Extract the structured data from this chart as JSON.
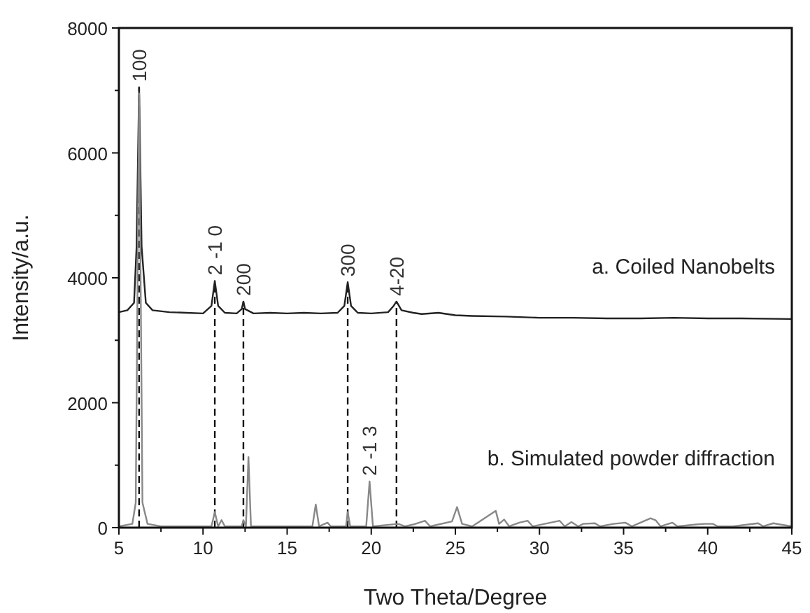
{
  "chart_data": {
    "type": "line",
    "xlabel": "Two Theta/Degree",
    "ylabel": "Intensity/a.u.",
    "xlim": [
      5,
      45
    ],
    "ylim": [
      0,
      8000
    ],
    "xticks": [
      5,
      {
        "value": 7.5,
        "label": null
      },
      10,
      {
        "value": 12.5,
        "label": null
      },
      15,
      {
        "value": 17.5,
        "label": null
      },
      20,
      {
        "value": 22.5,
        "label": null
      },
      25,
      {
        "value": 27.5,
        "label": null
      },
      30,
      {
        "value": 32.5,
        "label": null
      },
      35,
      {
        "value": 37.5,
        "label": null
      },
      40,
      {
        "value": 42.5,
        "label": null
      },
      45
    ],
    "yticks": [
      0,
      {
        "value": 1000,
        "label": null
      },
      2000,
      {
        "value": 3000,
        "label": null
      },
      4000,
      {
        "value": 5000,
        "label": null
      },
      6000,
      {
        "value": 7000,
        "label": null
      },
      8000
    ],
    "grid": false,
    "marker": "none",
    "line_style": "solid",
    "series": [
      {
        "name": "a. Coiled Nanobelts",
        "color": "#222222",
        "x": [
          5,
          5.5,
          5.9,
          6.05,
          6.2,
          6.35,
          6.6,
          7,
          8,
          9,
          10,
          10.5,
          10.7,
          10.9,
          11.3,
          12,
          12.3,
          12.4,
          12.5,
          13,
          14,
          15,
          16,
          17,
          18,
          18.4,
          18.6,
          18.8,
          19.2,
          20,
          21,
          21.3,
          21.5,
          21.8,
          22.5,
          23,
          24,
          25,
          26,
          28,
          30,
          32,
          34,
          36,
          38,
          40,
          42,
          45
        ],
        "values": [
          3450,
          3480,
          3600,
          4500,
          7050,
          4500,
          3600,
          3480,
          3450,
          3440,
          3430,
          3550,
          3950,
          3550,
          3440,
          3430,
          3500,
          3620,
          3500,
          3430,
          3440,
          3430,
          3440,
          3430,
          3440,
          3550,
          3930,
          3550,
          3440,
          3430,
          3450,
          3540,
          3620,
          3480,
          3440,
          3420,
          3440,
          3400,
          3390,
          3380,
          3360,
          3360,
          3350,
          3350,
          3360,
          3350,
          3350,
          3340
        ]
      },
      {
        "name": "b. Simulated powder diffraction",
        "color": "#888888",
        "x": [
          5,
          5.8,
          6.0,
          6.2,
          6.4,
          6.7,
          7.5,
          10.5,
          10.7,
          10.9,
          11.1,
          11.3,
          12.3,
          12.4,
          12.55,
          12.7,
          12.85,
          16.5,
          16.7,
          16.9,
          17.4,
          17.6,
          18.5,
          18.6,
          18.75,
          19.7,
          19.9,
          20.1,
          21.6,
          22,
          22.5,
          23.2,
          23.5,
          24.8,
          25.1,
          25.4,
          26,
          27.4,
          27.6,
          27.9,
          28.2,
          28.8,
          29.3,
          29.6,
          31.2,
          31.5,
          31.9,
          32.3,
          32.6,
          33.3,
          33.6,
          34.4,
          35.1,
          35.5,
          36.6,
          36.9,
          37.2,
          37.9,
          38.2,
          39.3,
          39.8,
          40.3,
          40.6,
          41.5,
          43,
          43.3,
          43.9,
          44.3,
          45
        ],
        "values": [
          20,
          60,
          400,
          6950,
          400,
          60,
          20,
          20,
          250,
          20,
          120,
          20,
          20,
          120,
          20,
          1130,
          20,
          20,
          370,
          20,
          80,
          20,
          20,
          250,
          20,
          20,
          740,
          20,
          60,
          20,
          50,
          110,
          20,
          100,
          330,
          60,
          20,
          270,
          60,
          130,
          20,
          80,
          110,
          20,
          110,
          20,
          90,
          20,
          60,
          70,
          20,
          60,
          80,
          20,
          150,
          120,
          20,
          80,
          20,
          50,
          60,
          60,
          20,
          20,
          70,
          20,
          70,
          50,
          20
        ]
      }
    ],
    "ref_lines": [
      {
        "axis": "x",
        "value": 6.2,
        "line_style": "dashed"
      },
      {
        "axis": "x",
        "value": 10.7,
        "line_style": "dashed"
      },
      {
        "axis": "x",
        "value": 12.4,
        "line_style": "dashed"
      },
      {
        "axis": "x",
        "value": 18.6,
        "line_style": "dashed"
      },
      {
        "axis": "x",
        "value": 21.5,
        "line_style": "dashed"
      }
    ],
    "annotations": [
      {
        "text": "100",
        "x": 6.2,
        "y": 7050
      },
      {
        "text": "2 -1 0",
        "x": 10.7,
        "y": 3950
      },
      {
        "text": "200",
        "x": 12.4,
        "y": 3620
      },
      {
        "text": "300",
        "x": 18.6,
        "y": 3930
      },
      {
        "text": "4-20",
        "x": 21.5,
        "y": 3620
      },
      {
        "text": "2 -1 3",
        "x": 19.9,
        "y": 740
      }
    ]
  }
}
